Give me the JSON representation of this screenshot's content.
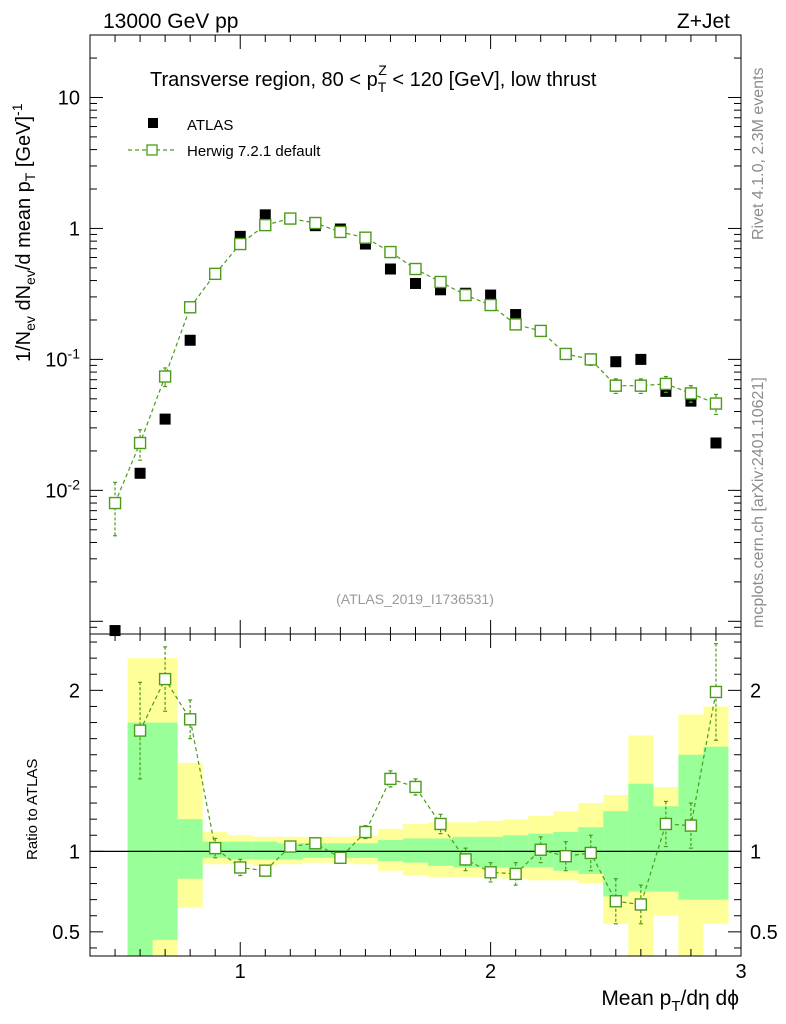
{
  "header": {
    "energy": "13000 GeV pp",
    "process": "Z+Jet"
  },
  "side_labels": {
    "rivet": "Rivet 4.1.0,  2.3M events",
    "mcplots": "mcplots.cern.ch [arXiv:2401.10621]"
  },
  "watermark": "(ATLAS_2019_I1736531)",
  "chart_data": [
    {
      "panel": "main",
      "type": "scatter",
      "title": "Transverse region, 80 < p_T^Z < 120 [GeV], low thrust",
      "xlabel": "Mean p_T/dη dϕ",
      "ylabel": "1/N_ev dN_ev/d mean p_T [GeV]^-1",
      "xlim": [
        0.4,
        3.0
      ],
      "ylim": [
        0.0008,
        30
      ],
      "yscale": "log",
      "x_ticks": [
        "1",
        "2",
        "3"
      ],
      "y_ticks": [
        "10^-2",
        "10^-1",
        "1",
        "10"
      ],
      "legend": [
        "ATLAS",
        "Herwig 7.2.1 default"
      ],
      "series": [
        {
          "name": "ATLAS",
          "marker": "filled-square",
          "color": "#000000",
          "x": [
            0.5,
            0.6,
            0.7,
            0.8,
            0.9,
            1.0,
            1.1,
            1.2,
            1.3,
            1.4,
            1.5,
            1.6,
            1.7,
            1.8,
            1.9,
            2.0,
            2.1,
            2.2,
            2.3,
            2.4,
            2.5,
            2.6,
            2.7,
            2.8,
            2.9
          ],
          "y": [
            0.00085,
            0.0135,
            0.035,
            0.14,
            0.45,
            0.87,
            1.27,
            1.18,
            1.05,
            0.99,
            0.76,
            0.49,
            0.38,
            0.34,
            0.32,
            0.31,
            0.22,
            0.165,
            0.11,
            0.1,
            0.096,
            0.1,
            0.057,
            0.048,
            0.023
          ]
        },
        {
          "name": "Herwig 7.2.1 default",
          "marker": "open-square",
          "line": "dashed",
          "color": "#4a9c1a",
          "x": [
            0.5,
            0.6,
            0.7,
            0.8,
            0.9,
            1.0,
            1.1,
            1.2,
            1.3,
            1.4,
            1.5,
            1.6,
            1.7,
            1.8,
            1.9,
            2.0,
            2.1,
            2.2,
            2.3,
            2.4,
            2.5,
            2.6,
            2.7,
            2.8,
            2.9
          ],
          "y": [
            0.008,
            0.023,
            0.074,
            0.25,
            0.45,
            0.76,
            1.06,
            1.19,
            1.1,
            0.94,
            0.85,
            0.66,
            0.49,
            0.39,
            0.31,
            0.26,
            0.185,
            0.165,
            0.11,
            0.1,
            0.063,
            0.063,
            0.065,
            0.055,
            0.046
          ],
          "yerr": [
            0.0035,
            0.006,
            0.012,
            0.02,
            0.02,
            0.03,
            0.04,
            0.05,
            0.05,
            0.04,
            0.04,
            0.04,
            0.03,
            0.025,
            0.02,
            0.02,
            0.015,
            0.012,
            0.01,
            0.01,
            0.008,
            0.008,
            0.009,
            0.008,
            0.008
          ]
        }
      ]
    },
    {
      "panel": "ratio",
      "type": "scatter",
      "ylabel": "Ratio to ATLAS",
      "xlim": [
        0.4,
        3.0
      ],
      "ylim": [
        0.35,
        2.35
      ],
      "x_ticks": [
        "1",
        "2",
        "3"
      ],
      "y_ticks": [
        "0.5",
        "1",
        "2"
      ],
      "reference_line": 1,
      "bands": {
        "edges": [
          0.55,
          0.65,
          0.75,
          0.85,
          0.95,
          1.05,
          1.15,
          1.25,
          1.35,
          1.45,
          1.55,
          1.65,
          1.75,
          1.85,
          1.95,
          2.05,
          2.15,
          2.25,
          2.35,
          2.45,
          2.55,
          2.65,
          2.75,
          2.85,
          2.95
        ],
        "yellow_low": [
          0.0,
          0.35,
          0.65,
          0.92,
          0.92,
          0.91,
          0.92,
          0.93,
          0.93,
          0.92,
          0.88,
          0.85,
          0.84,
          0.84,
          0.84,
          0.83,
          0.82,
          0.82,
          0.8,
          0.55,
          0.35,
          0.6,
          0.35,
          0.55
        ],
        "yellow_high": [
          2.2,
          2.2,
          1.55,
          1.12,
          1.1,
          1.09,
          1.09,
          1.09,
          1.09,
          1.1,
          1.14,
          1.17,
          1.18,
          1.18,
          1.19,
          1.2,
          1.22,
          1.25,
          1.3,
          1.35,
          1.72,
          1.4,
          1.85,
          1.9
        ],
        "green_low": [
          0.0,
          0.45,
          0.83,
          0.96,
          0.95,
          0.95,
          0.95,
          0.96,
          0.96,
          0.96,
          0.94,
          0.93,
          0.91,
          0.9,
          0.9,
          0.9,
          0.9,
          0.88,
          0.86,
          0.72,
          0.75,
          0.75,
          0.7,
          0.7
        ],
        "green_high": [
          1.8,
          1.8,
          1.2,
          1.06,
          1.06,
          1.06,
          1.05,
          1.05,
          1.05,
          1.05,
          1.07,
          1.08,
          1.08,
          1.09,
          1.09,
          1.1,
          1.11,
          1.12,
          1.15,
          1.25,
          1.42,
          1.28,
          1.6,
          1.65
        ]
      },
      "series": [
        {
          "name": "Herwig 7.2.1 default / ATLAS",
          "x": [
            0.6,
            0.7,
            0.8,
            0.9,
            1.0,
            1.1,
            1.2,
            1.3,
            1.4,
            1.5,
            1.6,
            1.7,
            1.8,
            1.9,
            2.0,
            2.1,
            2.2,
            2.3,
            2.4,
            2.5,
            2.6,
            2.7,
            2.8,
            2.9
          ],
          "y": [
            1.75,
            2.07,
            1.82,
            1.02,
            0.9,
            0.88,
            1.03,
            1.05,
            0.96,
            1.12,
            1.45,
            1.4,
            1.17,
            0.95,
            0.87,
            0.86,
            1.01,
            0.97,
            0.99,
            0.69,
            0.67,
            1.17,
            1.16,
            1.99
          ],
          "yerr": [
            0.3,
            0.2,
            0.12,
            0.06,
            0.05,
            0.03,
            0.03,
            0.03,
            0.03,
            0.04,
            0.05,
            0.05,
            0.06,
            0.07,
            0.06,
            0.07,
            0.08,
            0.09,
            0.11,
            0.14,
            0.12,
            0.14,
            0.14,
            0.3
          ]
        }
      ]
    }
  ]
}
